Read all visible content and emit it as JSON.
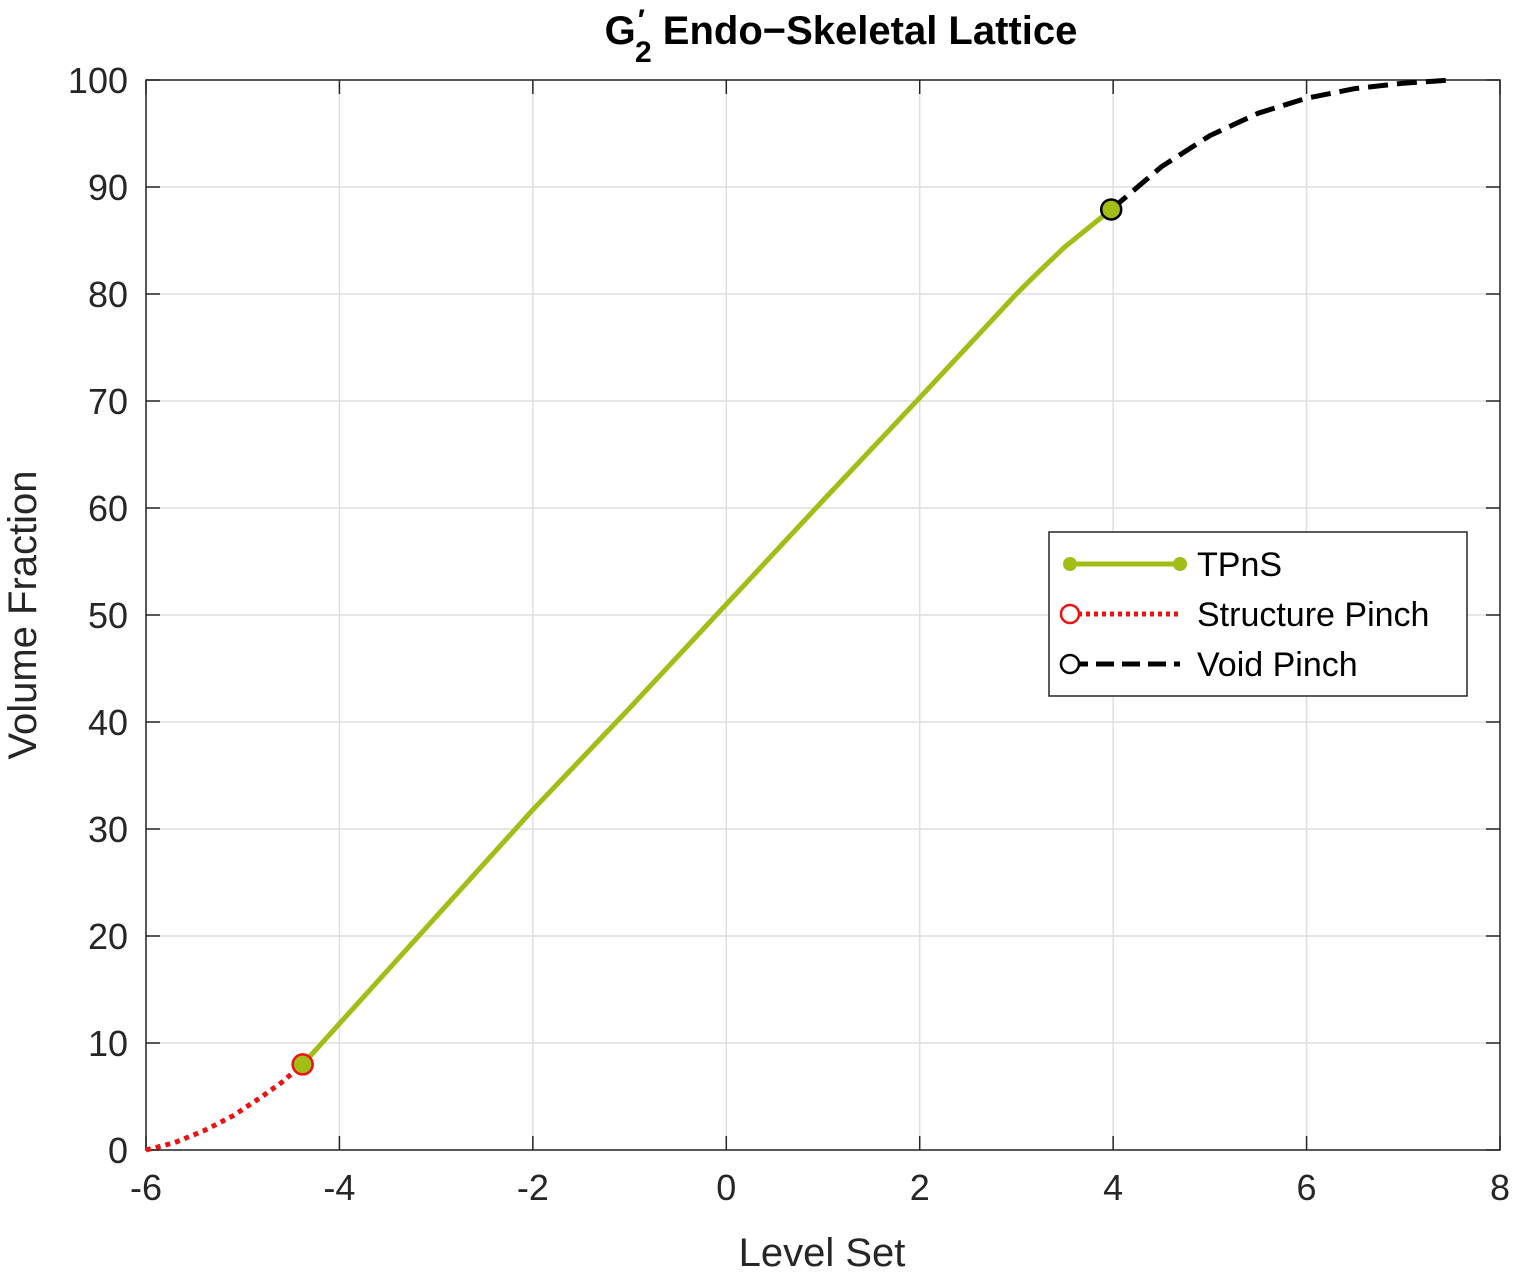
{
  "chart_data": {
    "type": "line",
    "title": {
      "main": "G",
      "prime": "′",
      "subscript": "2",
      "rest": " Endo−Skeletal Lattice"
    },
    "xlabel": "Level Set",
    "ylabel": "Volume Fraction",
    "xlim": [
      -6,
      8
    ],
    "ylim": [
      0,
      100
    ],
    "xticks": [
      -6,
      -4,
      -2,
      0,
      2,
      4,
      6,
      8
    ],
    "xtick_labels": [
      "-6",
      "-4",
      "-2",
      "0",
      "2",
      "4",
      "6",
      "8"
    ],
    "yticks": [
      0,
      10,
      20,
      30,
      40,
      50,
      60,
      70,
      80,
      90,
      100
    ],
    "ytick_labels": [
      "0",
      "10",
      "20",
      "30",
      "40",
      "50",
      "60",
      "70",
      "80",
      "90",
      "100"
    ],
    "grid": true,
    "legend_position": "right",
    "series": [
      {
        "name": "TPnS",
        "color": "#a2bd16",
        "style": "solid",
        "marker": "filled-circle",
        "x": [
          -4.38,
          -4.0,
          -3.0,
          -2.0,
          -1.0,
          0.0,
          1.0,
          2.0,
          3.0,
          3.2,
          3.5,
          3.98
        ],
        "y": [
          8.0,
          11.8,
          21.8,
          31.8,
          41.3,
          51.0,
          60.7,
          70.3,
          80.0,
          81.8,
          84.4,
          87.9
        ]
      },
      {
        "name": "Structure Pinch",
        "color": "#ee1111",
        "style": "dotted",
        "marker": "open-circle",
        "x": [
          -6.0,
          -5.7,
          -5.4,
          -5.1,
          -4.8,
          -4.6,
          -4.38
        ],
        "y": [
          0.0,
          0.7,
          1.8,
          3.2,
          5.0,
          6.3,
          8.0
        ]
      },
      {
        "name": "Void Pinch",
        "color": "#000000",
        "style": "dashed",
        "marker": "open-circle",
        "x": [
          3.98,
          4.5,
          5.0,
          5.5,
          6.0,
          6.5,
          7.0,
          7.5
        ],
        "y": [
          87.9,
          91.9,
          94.8,
          96.9,
          98.3,
          99.2,
          99.7,
          100.0
        ]
      }
    ],
    "markers": [
      {
        "series": 0,
        "x": -4.38,
        "y": 8.0,
        "edge": "#ee1111"
      },
      {
        "series": 0,
        "x": 3.98,
        "y": 87.9,
        "edge": "#000000"
      }
    ]
  }
}
